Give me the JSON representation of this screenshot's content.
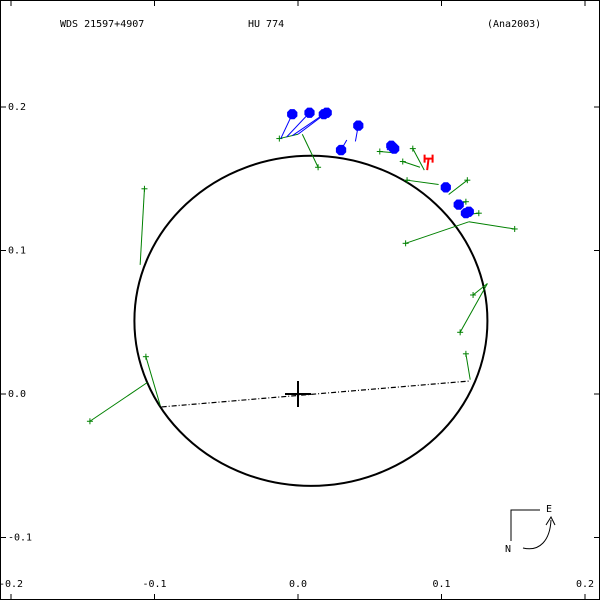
{
  "header": {
    "system": "WDS 21597+4907",
    "discoverer": "HU  774",
    "reference": "(Ana2003)"
  },
  "compass": {
    "east": "E",
    "north": "N"
  },
  "colors": {
    "orbit": "#000000",
    "micrometer": "#008000",
    "speckle": "#0000ff",
    "hipparcos": "#ff0000"
  },
  "chart_data": {
    "type": "scatter",
    "title": "",
    "xlabel": "",
    "ylabel": "",
    "xlim": [
      -0.2,
      0.2
    ],
    "ylim": [
      -0.13,
      0.23
    ],
    "grid": false,
    "x_ticks": [
      {
        "value": -0.2,
        "label": "-0.2"
      },
      {
        "value": -0.1,
        "label": "-0.1"
      },
      {
        "value": 0.0,
        "label": "0.0"
      },
      {
        "value": 0.1,
        "label": "0.1"
      },
      {
        "value": 0.2,
        "label": "0.2"
      }
    ],
    "y_ticks": [
      {
        "value": 0.2,
        "label": "0.2"
      },
      {
        "value": 0.1,
        "label": "0.1"
      },
      {
        "value": 0.0,
        "label": "0.0"
      },
      {
        "value": -0.1,
        "label": "-0.1"
      }
    ],
    "orbit": {
      "center": [
        0.009,
        0.051
      ],
      "rx": 0.123,
      "ry": 0.115,
      "rotation_deg": 0
    },
    "line_of_nodes": [
      [
        -0.095,
        -0.009
      ],
      [
        0.119,
        0.009
      ]
    ],
    "primary": [
      0.0,
      0.0
    ],
    "series": [
      {
        "name": "micrometer",
        "marker": "plus",
        "points": [
          {
            "obs": [
              -0.107,
              0.143
            ],
            "fit": [
              -0.11,
              0.09
            ]
          },
          {
            "obs": [
              -0.145,
              -0.019
            ],
            "fit": [
              -0.105,
              0.008
            ]
          },
          {
            "obs": [
              -0.106,
              0.026
            ],
            "fit": [
              -0.096,
              -0.008
            ]
          },
          {
            "obs": [
              -0.013,
              0.178
            ],
            "fit": [
              0.0,
              0.181
            ]
          },
          {
            "obs": [
              0.014,
              0.158
            ],
            "fit": [
              0.003,
              0.181
            ]
          },
          {
            "obs": [
              0.057,
              0.169
            ],
            "fit": [
              0.068,
              0.168
            ]
          },
          {
            "obs": [
              0.073,
              0.162
            ],
            "fit": [
              0.085,
              0.158
            ]
          },
          {
            "obs": [
              0.08,
              0.171
            ],
            "fit": [
              0.088,
              0.156
            ]
          },
          {
            "obs": [
              0.076,
              0.149
            ],
            "fit": [
              0.098,
              0.146
            ]
          },
          {
            "obs": [
              0.118,
              0.149
            ],
            "fit": [
              0.105,
              0.139
            ]
          },
          {
            "obs": [
              0.117,
              0.134
            ],
            "fit": [
              0.11,
              0.132
            ]
          },
          {
            "obs": [
              0.126,
              0.126
            ],
            "fit": [
              0.116,
              0.125
            ]
          },
          {
            "obs": [
              0.151,
              0.115
            ],
            "fit": [
              0.119,
              0.12
            ]
          },
          {
            "obs": [
              0.075,
              0.105
            ],
            "fit": [
              0.119,
              0.12
            ]
          },
          {
            "obs": [
              0.122,
              0.069
            ],
            "fit": [
              0.132,
              0.077
            ]
          },
          {
            "obs": [
              0.113,
              0.043
            ],
            "fit": [
              0.132,
              0.077
            ]
          },
          {
            "obs": [
              0.117,
              0.028
            ],
            "fit": [
              0.12,
              0.01
            ]
          }
        ]
      },
      {
        "name": "speckle",
        "marker": "octagon",
        "points": [
          {
            "obs": [
              -0.004,
              0.195
            ],
            "fit": [
              -0.012,
              0.178
            ]
          },
          {
            "obs": [
              0.008,
              0.196
            ],
            "fit": [
              -0.008,
              0.179
            ]
          },
          {
            "obs": [
              0.018,
              0.195
            ],
            "fit": [
              -0.004,
              0.18
            ]
          },
          {
            "obs": [
              0.02,
              0.196
            ],
            "fit": [
              0.0,
              0.181
            ]
          },
          {
            "obs": [
              0.03,
              0.17
            ],
            "fit": [
              0.034,
              0.177
            ]
          },
          {
            "obs": [
              0.042,
              0.187
            ],
            "fit": [
              0.04,
              0.176
            ]
          },
          {
            "obs": [
              0.065,
              0.173
            ],
            "fit": [
              0.062,
              0.17
            ]
          },
          {
            "obs": [
              0.067,
              0.171
            ],
            "fit": [
              0.065,
              0.169
            ]
          },
          {
            "obs": [
              0.103,
              0.144
            ],
            "fit": [
              0.101,
              0.144
            ]
          },
          {
            "obs": [
              0.112,
              0.132
            ],
            "fit": [
              0.11,
              0.132
            ]
          },
          {
            "obs": [
              0.117,
              0.126
            ],
            "fit": [
              0.115,
              0.126
            ]
          },
          {
            "obs": [
              0.119,
              0.127
            ],
            "fit": [
              0.116,
              0.125
            ]
          }
        ]
      },
      {
        "name": "hipparcos",
        "marker": "H",
        "points": [
          {
            "obs": [
              0.091,
              0.164
            ],
            "fit": [
              0.09,
              0.156
            ]
          }
        ]
      }
    ]
  }
}
